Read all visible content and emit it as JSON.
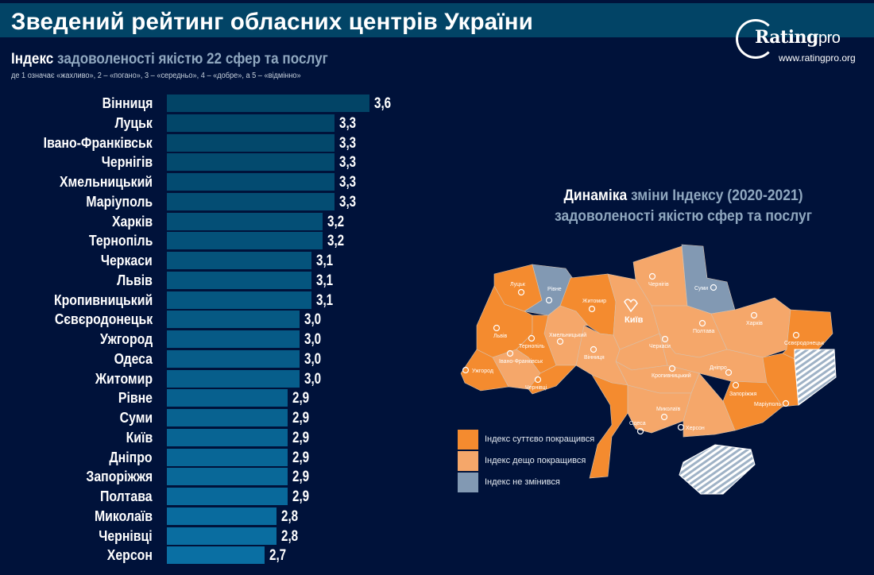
{
  "header": {
    "title": "Зведений рейтинг обласних центрів України"
  },
  "logo": {
    "brand": "Rating",
    "brand_suffix": "pro",
    "url": "www.ratingpro.org"
  },
  "subtitle": {
    "bold": "Індекс",
    "rest": "задоволеності якістю 22 сфер та послуг",
    "note": "де 1 означає «жахливо», 2 – «погано», 3 – «середньо», 4 – «добре», а 5 – «відмінно»"
  },
  "chart_data": {
    "type": "bar",
    "orientation": "horizontal",
    "categories": [
      "Вінниця",
      "Луцьк",
      "Івано-Франківськ",
      "Чернігів",
      "Хмельницький",
      "Маріуполь",
      "Харків",
      "Тернопіль",
      "Черкаси",
      "Львів",
      "Кропивницький",
      "Сєвєродонецьк",
      "Ужгород",
      "Одеса",
      "Житомир",
      "Рівне",
      "Суми",
      "Київ",
      "Дніпро",
      "Запоріжжя",
      "Полтава",
      "Миколаїв",
      "Чернівці",
      "Херсон"
    ],
    "values": [
      3.6,
      3.3,
      3.3,
      3.3,
      3.3,
      3.3,
      3.2,
      3.2,
      3.1,
      3.1,
      3.1,
      3.0,
      3.0,
      3.0,
      3.0,
      2.9,
      2.9,
      2.9,
      2.9,
      2.9,
      2.9,
      2.8,
      2.8,
      2.7
    ],
    "value_labels": [
      "3,6",
      "3,3",
      "3,3",
      "3,3",
      "3,3",
      "3,3",
      "3,2",
      "3,2",
      "3,1",
      "3,1",
      "3,1",
      "3,0",
      "3,0",
      "3,0",
      "3,0",
      "2,9",
      "2,9",
      "2,9",
      "2,9",
      "2,9",
      "2,9",
      "2,8",
      "2,8",
      "2,7"
    ],
    "bar_color_top": "#024466",
    "bar_color_bottom": "#0a6fa3"
  },
  "map": {
    "title_bold": "Динаміка",
    "title_rest1": "зміни Індексу (2020-2021)",
    "title_line2": "задоволеності якістю сфер та послуг",
    "colors": {
      "significant": "#f48b2f",
      "slight": "#f5a76a",
      "unchanged": "#8299b3",
      "occupied": "#9fb2c6"
    },
    "legend": [
      {
        "key": "significant",
        "label": "Індекс суттєво покращився"
      },
      {
        "key": "slight",
        "label": "Індекс дещо покращився"
      },
      {
        "key": "unchanged",
        "label": "Індекс не змінився"
      }
    ],
    "regions": [
      {
        "city": "Луцьк",
        "status": "significant"
      },
      {
        "city": "Рівне",
        "status": "unchanged"
      },
      {
        "city": "Житомир",
        "status": "significant"
      },
      {
        "city": "Київ",
        "status": "slight"
      },
      {
        "city": "Чернігів",
        "status": "slight"
      },
      {
        "city": "Суми",
        "status": "unchanged"
      },
      {
        "city": "Полтава",
        "status": "slight"
      },
      {
        "city": "Харків",
        "status": "slight"
      },
      {
        "city": "Сєвєродонецьк",
        "status": "significant"
      },
      {
        "city": "Маріуполь",
        "status": "significant"
      },
      {
        "city": "Дніпро",
        "status": "slight"
      },
      {
        "city": "Запоріжжя",
        "status": "significant"
      },
      {
        "city": "Черкаси",
        "status": "slight"
      },
      {
        "city": "Кропивницький",
        "status": "slight"
      },
      {
        "city": "Вінниця",
        "status": "slight"
      },
      {
        "city": "Хмельницький",
        "status": "slight"
      },
      {
        "city": "Львів",
        "status": "significant"
      },
      {
        "city": "Тернопіль",
        "status": "significant"
      },
      {
        "city": "Івано-Франківськ",
        "status": "slight"
      },
      {
        "city": "Ужгород",
        "status": "significant"
      },
      {
        "city": "Чернівці",
        "status": "significant"
      },
      {
        "city": "Одеса",
        "status": "significant"
      },
      {
        "city": "Миколаїв",
        "status": "slight"
      },
      {
        "city": "Херсон",
        "status": "slight"
      }
    ],
    "map_labels": [
      "Луцьк",
      "Рівне",
      "Житомир",
      "Київ",
      "Чернігів",
      "Суми",
      "Полтава",
      "Харків",
      "Сєвєродонецьк",
      "Маріуполь",
      "Дніпро",
      "Запоріжжя",
      "Черкаси",
      "Кропивницький",
      "Вінниця",
      "Хмельницький",
      "Львів",
      "Тернопіль",
      "Івано-Франківськ",
      "Ужгород",
      "Чернівці",
      "Одеса",
      "Миколаїв",
      "Херсон"
    ]
  }
}
